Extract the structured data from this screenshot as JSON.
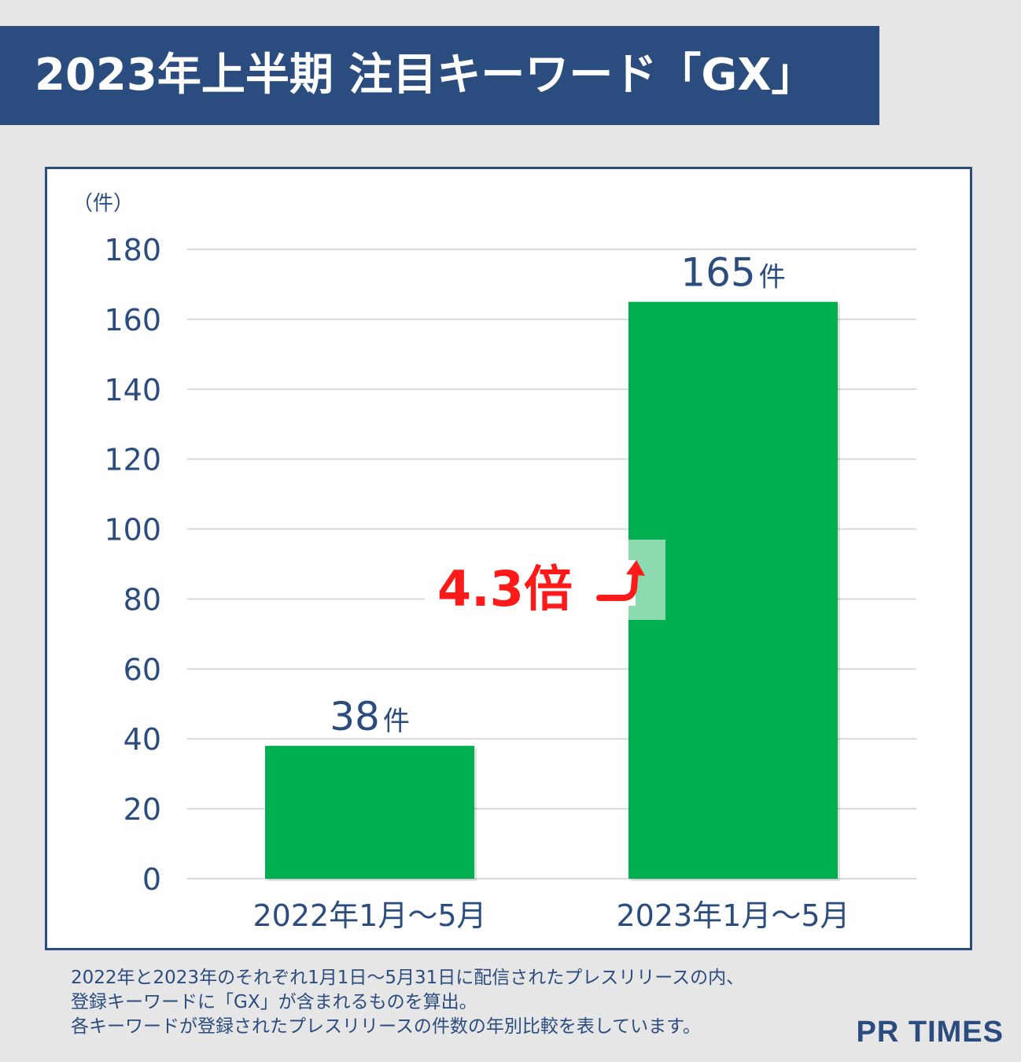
{
  "title": "2023年上半期 注目キーワード「GX」",
  "chart_data": {
    "type": "bar",
    "categories": [
      "2022年1月～5月",
      "2023年1月～5月"
    ],
    "values": [
      38,
      165
    ],
    "value_labels": [
      {
        "number": "38",
        "unit": "件"
      },
      {
        "number": "165",
        "unit": "件"
      }
    ],
    "y_unit_label": "（件）",
    "ylim": [
      0,
      180
    ],
    "yticks": [
      0,
      20,
      40,
      60,
      80,
      100,
      120,
      140,
      160,
      180
    ],
    "grid": true,
    "bar_color": "#00b050",
    "annotation": {
      "text": "4.3倍",
      "arrow": "⤴",
      "color": "#ff1a1a"
    }
  },
  "footnote": [
    "2022年と2023年のそれぞれ1月1日～5月31日に配信されたプレスリリースの内、",
    "登録キーワードに「GX」が含まれるものを算出。",
    "各キーワードが登録されたプレスリリースの件数の年別比較を表しています。"
  ],
  "logo": "PR TIMES",
  "colors": {
    "navy": "#2b4c7e",
    "background": "#e6e6e6"
  }
}
